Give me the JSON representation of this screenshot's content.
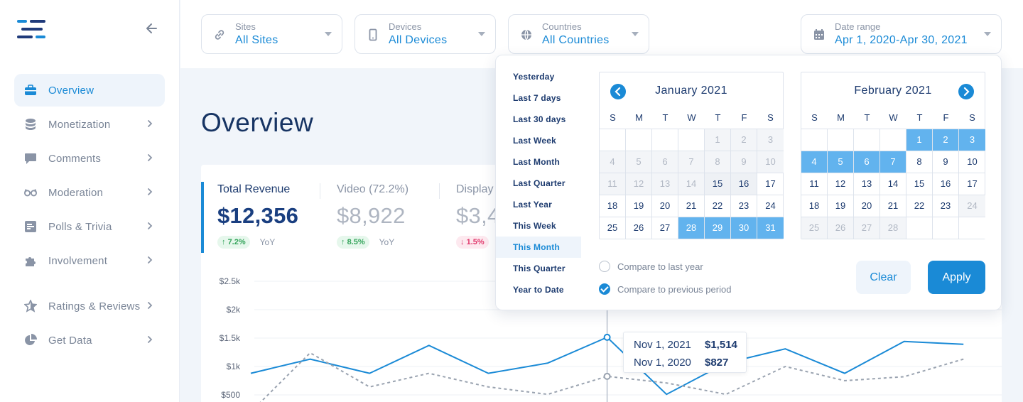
{
  "sidebar": {
    "items": [
      {
        "label": "Overview",
        "icon": "briefcase-icon",
        "active": true
      },
      {
        "label": "Monetization",
        "icon": "coins-icon"
      },
      {
        "label": "Comments",
        "icon": "comment-icon"
      },
      {
        "label": "Moderation",
        "icon": "glasses-icon"
      },
      {
        "label": "Polls & Trivia",
        "icon": "poll-icon"
      },
      {
        "label": "Involvement",
        "icon": "puzzle-icon"
      },
      {
        "label": "Ratings & Reviews",
        "icon": "star-icon"
      },
      {
        "label": "Get Data",
        "icon": "pie-icon"
      }
    ]
  },
  "filters": {
    "sites": {
      "label": "Sites",
      "value": "All Sites"
    },
    "devices": {
      "label": "Devices",
      "value": "All Devices"
    },
    "countries": {
      "label": "Countries",
      "value": "All Countries"
    },
    "date_range": {
      "label": "Date range",
      "value": "Apr 1, 2020-Apr 30, 2021"
    }
  },
  "page": {
    "title": "Overview"
  },
  "metrics": [
    {
      "label": "Total Revenue",
      "value": "$12,356",
      "change": "7.2%",
      "direction": "up",
      "period": "YoY"
    },
    {
      "label": "Video (72.2%)",
      "value": "$8,922",
      "change": "8.5%",
      "direction": "up",
      "period": "YoY"
    },
    {
      "label": "Display",
      "value": "$3,4",
      "change": "1.5%",
      "direction": "down"
    }
  ],
  "chart_data": {
    "type": "line",
    "y_ticks": [
      "$2.5k",
      "$2k",
      "$1.5k",
      "$1k",
      "$500"
    ],
    "ylim": [
      0,
      2500
    ],
    "series": [
      {
        "values": [
          880,
          1130,
          880,
          1370,
          880,
          1060,
          1514,
          510,
          1060,
          1310,
          880,
          1440,
          1390
        ],
        "color": "#1a8ad6",
        "style": "solid"
      },
      {
        "values": [
          200,
          1240,
          640,
          880,
          640,
          510,
          827,
          710,
          510,
          1000,
          750,
          820,
          1130
        ],
        "color": "#9aa3b0",
        "style": "dashed"
      }
    ],
    "highlight_index": 6,
    "tooltip": [
      {
        "date": "Nov 1, 2021",
        "value": "$1,514"
      },
      {
        "date": "Nov 1, 2020",
        "value": "$827"
      }
    ]
  },
  "picker": {
    "presets": [
      "Yesterday",
      "Last 7 days",
      "Last 30 days",
      "Last Week",
      "Last Month",
      "Last Quarter",
      "Last Year",
      "This Week",
      "This Month",
      "This Quarter",
      "Year to Date"
    ],
    "active_preset": "This Month",
    "dow": [
      "S",
      "M",
      "T",
      "W",
      "T",
      "F",
      "S"
    ],
    "calendars": [
      {
        "title": "January 2021",
        "rows": [
          [
            [
              "",
              "empty"
            ],
            [
              "",
              "empty"
            ],
            [
              "",
              "empty"
            ],
            [
              "",
              "empty"
            ],
            [
              "1",
              "out"
            ],
            [
              "2",
              "out"
            ],
            [
              "3",
              "out"
            ]
          ],
          [
            [
              "4",
              "out"
            ],
            [
              "5",
              "out"
            ],
            [
              "6",
              "out"
            ],
            [
              "7",
              "out"
            ],
            [
              "8",
              "out"
            ],
            [
              "9",
              "out"
            ],
            [
              "10",
              "out"
            ]
          ],
          [
            [
              "11",
              "out"
            ],
            [
              "12",
              "out"
            ],
            [
              "13",
              "out"
            ],
            [
              "14",
              "out"
            ],
            [
              "15",
              "grey"
            ],
            [
              "16",
              "grey"
            ],
            [
              "17",
              ""
            ]
          ],
          [
            [
              "18",
              ""
            ],
            [
              "19",
              ""
            ],
            [
              "20",
              ""
            ],
            [
              "21",
              ""
            ],
            [
              "22",
              ""
            ],
            [
              "23",
              ""
            ],
            [
              "24",
              ""
            ]
          ],
          [
            [
              "25",
              ""
            ],
            [
              "26",
              ""
            ],
            [
              "27",
              ""
            ],
            [
              "28",
              "sel"
            ],
            [
              "29",
              "sel"
            ],
            [
              "30",
              "sel"
            ],
            [
              "31",
              "sel"
            ]
          ]
        ]
      },
      {
        "title": "February 2021",
        "rows": [
          [
            [
              "",
              "empty"
            ],
            [
              "",
              "empty"
            ],
            [
              "",
              "empty"
            ],
            [
              "",
              "empty"
            ],
            [
              "1",
              "sel"
            ],
            [
              "2",
              "sel"
            ],
            [
              "3",
              "sel"
            ]
          ],
          [
            [
              "4",
              "sel"
            ],
            [
              "5",
              "sel"
            ],
            [
              "6",
              "sel"
            ],
            [
              "7",
              "sel"
            ],
            [
              "8",
              ""
            ],
            [
              "9",
              ""
            ],
            [
              "10",
              ""
            ]
          ],
          [
            [
              "11",
              ""
            ],
            [
              "12",
              ""
            ],
            [
              "13",
              ""
            ],
            [
              "14",
              ""
            ],
            [
              "15",
              ""
            ],
            [
              "16",
              ""
            ],
            [
              "17",
              ""
            ]
          ],
          [
            [
              "18",
              ""
            ],
            [
              "19",
              ""
            ],
            [
              "20",
              ""
            ],
            [
              "21",
              ""
            ],
            [
              "22",
              ""
            ],
            [
              "23",
              ""
            ],
            [
              "24",
              "out"
            ]
          ],
          [
            [
              "25",
              "out"
            ],
            [
              "26",
              "out"
            ],
            [
              "27",
              "out"
            ],
            [
              "28",
              "out"
            ],
            [
              "",
              "empty"
            ],
            [
              "",
              "empty"
            ],
            [
              "",
              "empty"
            ]
          ]
        ]
      }
    ],
    "compare": [
      {
        "label": "Compare to last year",
        "checked": false
      },
      {
        "label": "Compare to previous period",
        "checked": true
      }
    ],
    "clear_label": "Clear",
    "apply_label": "Apply"
  }
}
